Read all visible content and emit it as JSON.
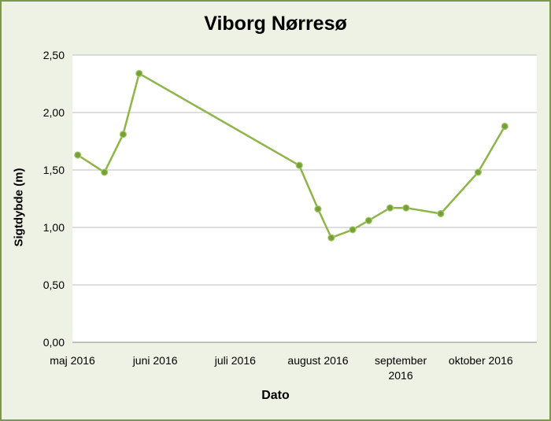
{
  "chart_data": {
    "type": "line",
    "title": "Viborg Nørresø",
    "xlabel": "Dato",
    "ylabel": "Sigtdybde (m)",
    "ylim": [
      0,
      2.5
    ],
    "yticks": [
      0,
      0.5,
      1.0,
      1.5,
      2.0,
      2.5
    ],
    "ytick_labels": [
      "0,00",
      "0,50",
      "1,00",
      "1,50",
      "2,00",
      "2,50"
    ],
    "xlim": [
      "2016-05-01",
      "2016-10-22"
    ],
    "xticks": [
      {
        "date": "2016-05-01",
        "label": [
          "maj 2016"
        ]
      },
      {
        "date": "2016-06-01",
        "label": [
          "juni 2016"
        ]
      },
      {
        "date": "2016-07-01",
        "label": [
          "juli 2016"
        ]
      },
      {
        "date": "2016-08-01",
        "label": [
          "august 2016"
        ]
      },
      {
        "date": "2016-09-01",
        "label": [
          "september",
          "2016"
        ]
      },
      {
        "date": "2016-10-01",
        "label": [
          "oktober 2016"
        ]
      }
    ],
    "grid": true,
    "color": "#8db548",
    "marker_color": "#76a03a",
    "series": [
      {
        "x": [
          "2016-05-03",
          "2016-05-13",
          "2016-05-20",
          "2016-05-26",
          "2016-07-25",
          "2016-08-01",
          "2016-08-06",
          "2016-08-14",
          "2016-08-20",
          "2016-08-28",
          "2016-09-03",
          "2016-09-16",
          "2016-09-30",
          "2016-10-10"
        ],
        "y": [
          1.63,
          1.48,
          1.81,
          2.34,
          1.54,
          1.16,
          0.91,
          0.98,
          1.06,
          1.17,
          1.17,
          1.12,
          1.48,
          1.88
        ]
      }
    ]
  }
}
